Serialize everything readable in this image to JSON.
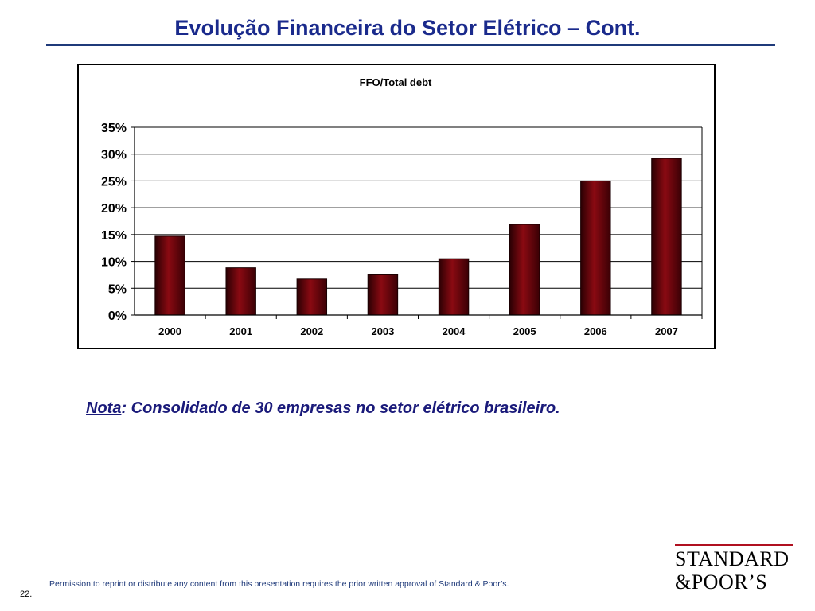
{
  "slide": {
    "title": "Evolução Financeira do Setor Elétrico – Cont.",
    "note_label": "Nota",
    "note_text": ": Consolidado de 30 empresas no setor  elétrico brasileiro.",
    "footer": "Permission to reprint or distribute any content from this presentation requires the prior written approval of Standard & Poor’s.",
    "page_number": "22.",
    "logo_line1": "STANDARD",
    "logo_line2": "&POOR’S",
    "colors": {
      "title": "#1a2a8c",
      "rule": "#1f3a7a",
      "logo_accent": "#b01020"
    }
  },
  "chart_data": {
    "type": "bar",
    "title": "FFO/Total debt",
    "categories": [
      "2000",
      "2001",
      "2002",
      "2003",
      "2004",
      "2005",
      "2006",
      "2007"
    ],
    "values": [
      14.7,
      8.8,
      6.7,
      7.5,
      10.5,
      16.9,
      25.0,
      29.2
    ],
    "unit": "%",
    "ylim": [
      0,
      35
    ],
    "yticks": [
      0,
      5,
      10,
      15,
      20,
      25,
      30,
      35
    ],
    "ytick_labels": [
      "0%",
      "5%",
      "10%",
      "15%",
      "20%",
      "25%",
      "30%",
      "35%"
    ],
    "xlabel": "",
    "ylabel": "",
    "grid": true,
    "legend": false,
    "bar_color": "#6e0008"
  }
}
